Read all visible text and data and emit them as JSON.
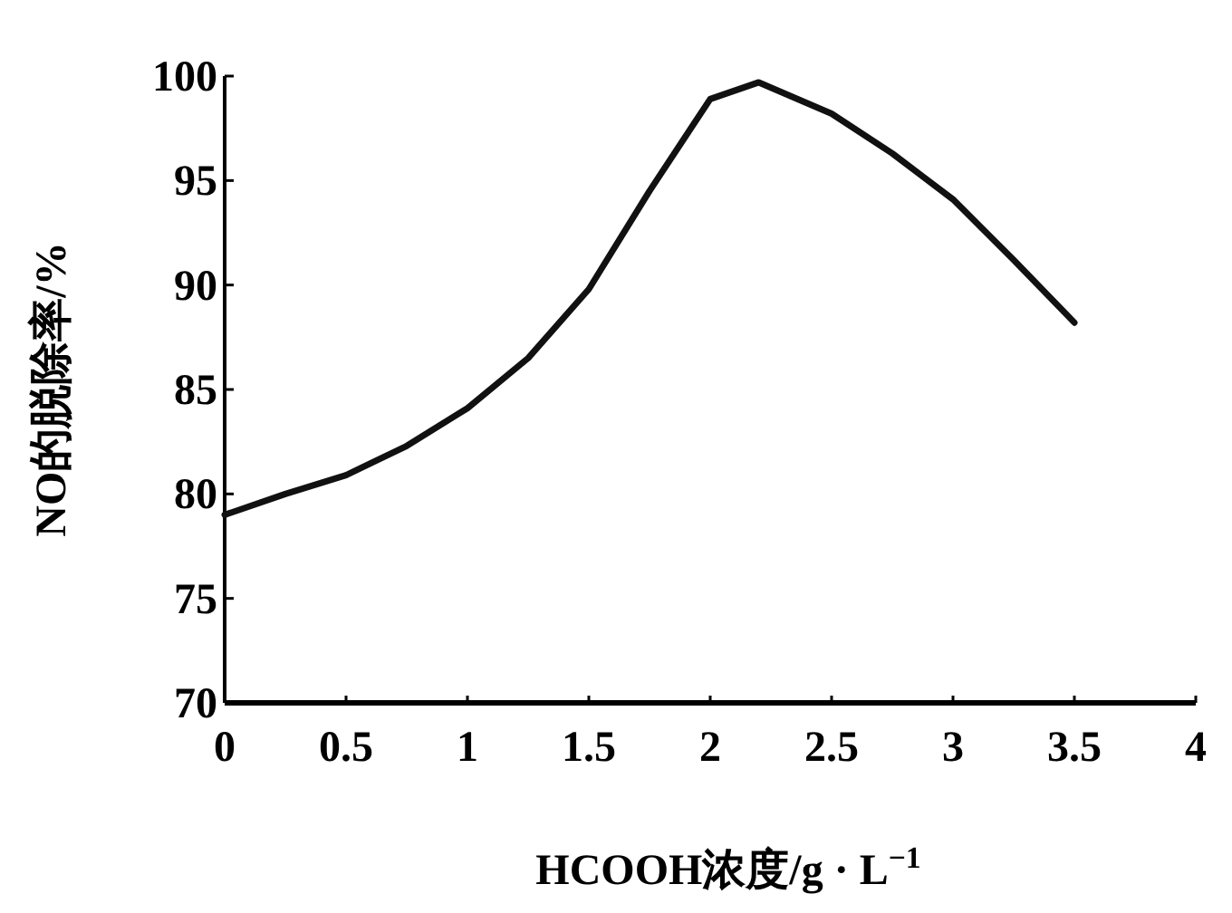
{
  "chart_data": {
    "type": "line",
    "xlabel": "HCOOH浓度/g · L$^{−1}$",
    "ylabel": "NO的脱除率/%",
    "x": [
      0,
      0.25,
      0.5,
      0.75,
      1.0,
      1.25,
      1.5,
      1.75,
      2.0,
      2.2,
      2.5,
      2.75,
      3.0,
      3.25,
      3.5
    ],
    "series": [
      {
        "color": "#111111",
        "values": [
          79,
          80,
          80.9,
          82.3,
          84.1,
          86.5,
          89.8,
          94.5,
          98.9,
          99.7,
          98.2,
          96.3,
          94.1,
          91.2,
          88.2
        ]
      }
    ],
    "xlim": [
      0,
      4
    ],
    "xticks": [
      0,
      0.5,
      1,
      1.5,
      2,
      2.5,
      3,
      3.5,
      4
    ],
    "ylim": [
      70,
      100
    ],
    "yticks": [
      70,
      75,
      80,
      85,
      90,
      95,
      100
    ],
    "marker": "none",
    "line_style": "solid"
  }
}
